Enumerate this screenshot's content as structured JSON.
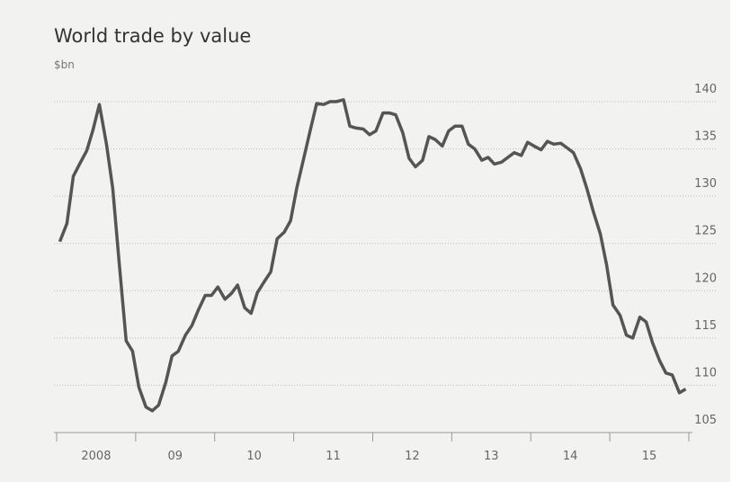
{
  "chart_data": {
    "type": "line",
    "title": "World trade by value",
    "subtitle": "$bn",
    "x": [
      2008.04,
      2008.13,
      2008.21,
      2008.29,
      2008.38,
      2008.46,
      2008.54,
      2008.63,
      2008.71,
      2008.79,
      2008.88,
      2008.96,
      2009.04,
      2009.13,
      2009.21,
      2009.29,
      2009.38,
      2009.46,
      2009.54,
      2009.63,
      2009.71,
      2009.79,
      2009.88,
      2009.96,
      2010.04,
      2010.13,
      2010.21,
      2010.29,
      2010.38,
      2010.46,
      2010.54,
      2010.63,
      2010.71,
      2010.79,
      2010.88,
      2010.96,
      2011.04,
      2011.13,
      2011.21,
      2011.29,
      2011.38,
      2011.46,
      2011.54,
      2011.63,
      2011.71,
      2011.79,
      2011.88,
      2011.96,
      2012.04,
      2012.13,
      2012.21,
      2012.29,
      2012.38,
      2012.46,
      2012.54,
      2012.63,
      2012.71,
      2012.79,
      2012.88,
      2012.96,
      2013.04,
      2013.13,
      2013.21,
      2013.29,
      2013.38,
      2013.46,
      2013.54,
      2013.63,
      2013.71,
      2013.79,
      2013.88,
      2013.96,
      2014.04,
      2014.13,
      2014.21,
      2014.29,
      2014.38,
      2014.46,
      2014.54,
      2014.63,
      2014.71,
      2014.79,
      2014.88,
      2014.96,
      2015.04,
      2015.13,
      2015.21,
      2015.29,
      2015.38,
      2015.46,
      2015.54,
      2015.63,
      2015.71,
      2015.79,
      2015.88,
      2015.96
    ],
    "values": [
      125.2,
      127.1,
      132.1,
      133.4,
      134.8,
      137,
      139.7,
      135.5,
      130.8,
      123.1,
      114.7,
      113.6,
      109.8,
      107.7,
      107.3,
      107.9,
      110.3,
      113.1,
      113.6,
      115.3,
      116.3,
      117.9,
      119.5,
      119.5,
      120.4,
      119.1,
      119.7,
      120.6,
      118.2,
      117.6,
      119.8,
      121,
      122,
      125.5,
      126.2,
      127.4,
      130.9,
      134.1,
      137,
      139.8,
      139.7,
      140,
      140,
      140.2,
      137.4,
      137.2,
      137.1,
      136.5,
      136.9,
      138.8,
      138.8,
      138.6,
      136.7,
      134,
      133.1,
      133.8,
      136.3,
      136,
      135.3,
      136.9,
      137.4,
      137.4,
      135.5,
      135,
      133.8,
      134.1,
      133.4,
      133.6,
      134.1,
      134.6,
      134.3,
      135.7,
      135.3,
      134.9,
      135.8,
      135.5,
      135.6,
      135.1,
      134.6,
      132.9,
      130.8,
      128.4,
      126,
      122.7,
      118.5,
      117.4,
      115.3,
      115,
      117.2,
      116.7,
      114.5,
      112.6,
      111.3,
      111.1,
      109.2,
      109.6
    ],
    "color": "#555555",
    "xlim": [
      2008,
      2016
    ],
    "xticks": [
      2008,
      2009,
      2010,
      2011,
      2012,
      2013,
      2014,
      2015,
      2016
    ],
    "xtick_labels": [
      {
        "value": 2008.5,
        "label": "2008"
      },
      {
        "value": 2009.5,
        "label": "09"
      },
      {
        "value": 2010.5,
        "label": "10"
      },
      {
        "value": 2011.5,
        "label": "11"
      },
      {
        "value": 2012.5,
        "label": "12"
      },
      {
        "value": 2013.5,
        "label": "13"
      },
      {
        "value": 2014.5,
        "label": "14"
      },
      {
        "value": 2015.5,
        "label": "15"
      }
    ],
    "ylim": [
      105,
      140
    ],
    "yticks": [
      105,
      110,
      115,
      120,
      125,
      130,
      135,
      140
    ],
    "grid": true
  }
}
